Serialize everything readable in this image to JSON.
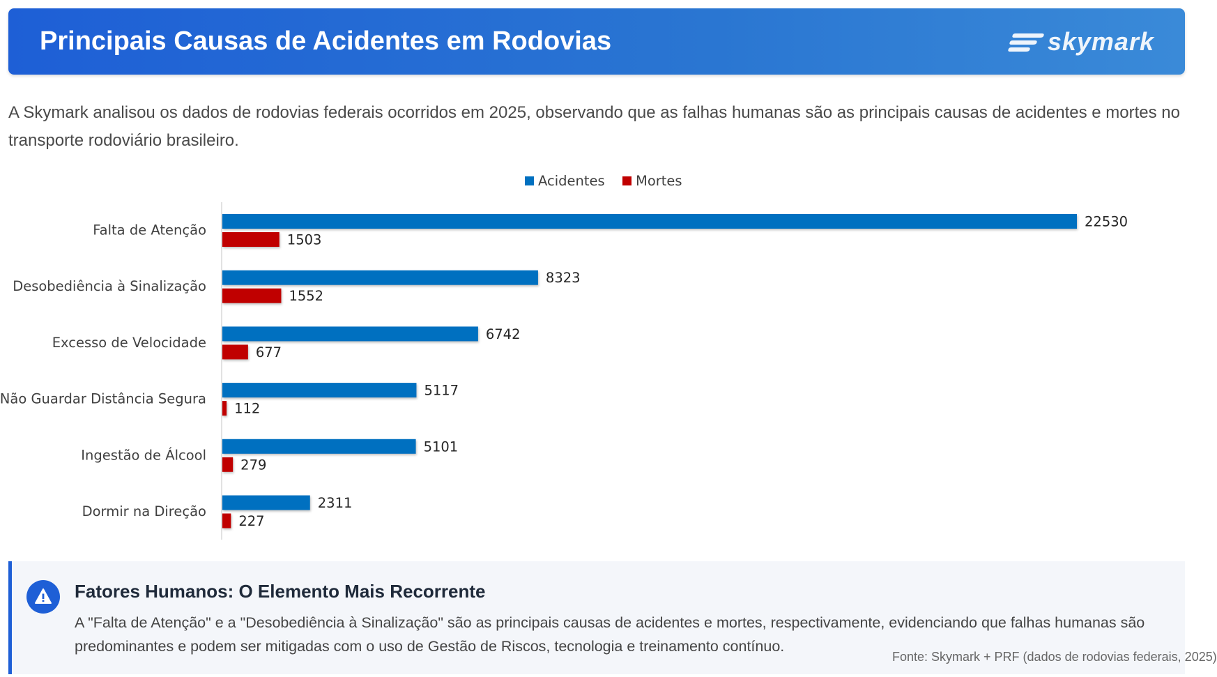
{
  "header": {
    "title": "Principais Causas de Acidentes em Rodovias",
    "logo_text": "skymark",
    "gradient_start": "#1e5fd6",
    "gradient_end": "#3a8ad8"
  },
  "intro": "A Skymark analisou os dados de rodovias federais ocorridos em 2025, observando que as falhas humanas são as principais causas de acidentes e mortes no transporte rodoviário brasileiro.",
  "chart_data": {
    "type": "bar",
    "orientation": "horizontal",
    "title": "",
    "xlabel": "",
    "ylabel": "",
    "xlim": [
      0,
      22530
    ],
    "legend_position": "top-center",
    "categories": [
      "Falta de Atenção",
      "Desobediência à Sinalização",
      "Excesso de Velocidade",
      "Não Guardar Distância Segura",
      "Ingestão de Álcool",
      "Dormir na Direção"
    ],
    "series": [
      {
        "name": "Acidentes",
        "color": "#0070c0",
        "values": [
          22530,
          8323,
          6742,
          5117,
          5101,
          2311
        ]
      },
      {
        "name": "Mortes",
        "color": "#c00000",
        "values": [
          1503,
          1552,
          677,
          112,
          279,
          227
        ]
      }
    ]
  },
  "callout": {
    "icon": "warning-icon",
    "title": "Fatores Humanos: O Elemento Mais Recorrente",
    "text": "A \"Falta de Atenção\" e a \"Desobediência à Sinalização\" são as principais causas de acidentes e mortes, respectivamente, evidenciando que falhas humanas são predominantes e podem ser mitigadas com o uso de Gestão de Riscos, tecnologia e treinamento contínuo.",
    "accent_color": "#1e5fd6"
  },
  "source": "Fonte: Skymark + PRF (dados de rodovias federais, 2025)"
}
